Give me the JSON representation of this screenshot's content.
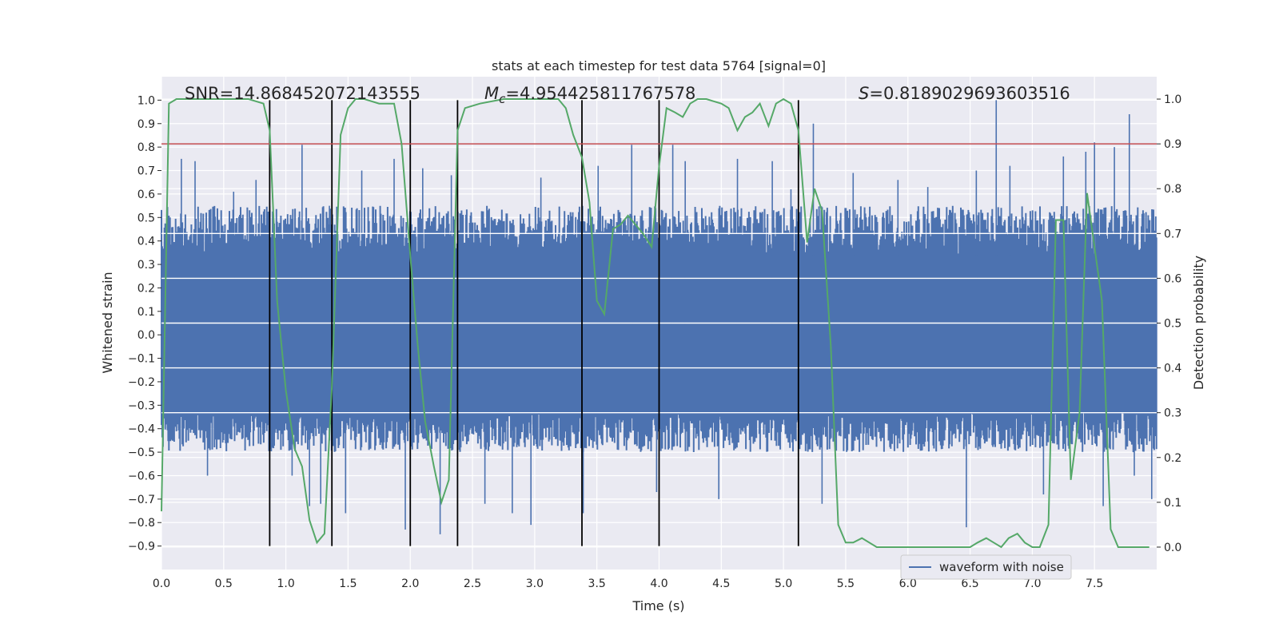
{
  "chart_data": {
    "type": "line",
    "title": "stats at each timestep for test data 5764 [signal=0]",
    "xlabel": "Time (s)",
    "ylabel": "Whitened strain",
    "y2label": "Detection probability",
    "xlim": [
      0.0,
      8.0
    ],
    "ylim": [
      -1.0,
      1.1
    ],
    "y2lim": [
      -0.05,
      1.05
    ],
    "x_ticks": [
      "0.0",
      "0.5",
      "1.0",
      "1.5",
      "2.0",
      "2.5",
      "3.0",
      "3.5",
      "4.0",
      "4.5",
      "5.0",
      "5.5",
      "6.0",
      "6.5",
      "7.0",
      "7.5"
    ],
    "y_ticks": [
      "−0.9",
      "−0.8",
      "−0.7",
      "−0.6",
      "−0.5",
      "−0.4",
      "−0.3",
      "−0.2",
      "−0.1",
      "0.0",
      "0.1",
      "0.2",
      "0.3",
      "0.4",
      "0.5",
      "0.6",
      "0.7",
      "0.8",
      "0.9",
      "1.0"
    ],
    "y2_ticks": [
      "0.0",
      "0.1",
      "0.2",
      "0.3",
      "0.4",
      "0.5",
      "0.6",
      "0.7",
      "0.8",
      "0.9",
      "1.0"
    ],
    "grid": true,
    "legend": {
      "position": "bottom-right",
      "entries": [
        "waveform with noise"
      ]
    },
    "annotations": {
      "snr": "SNR=14.868452072143555",
      "mc_symbol": "M",
      "mc_sub": "c",
      "mc_value": "=4.954425811767578",
      "s_symbol": "S",
      "s_value": "=0.8189029693603516"
    },
    "threshold": {
      "axis": "y2",
      "value": 0.9,
      "color": "#c44e52"
    },
    "vertical_lines": [
      0.87,
      1.37,
      2.0,
      2.38,
      3.38,
      4.0,
      5.12
    ],
    "vertical_line_range": [
      -0.9,
      1.0
    ],
    "series": [
      {
        "name": "waveform with noise",
        "axis": "y",
        "color": "#4c72b0",
        "kind": "noise",
        "core_band": [
          -0.33,
          0.34
        ],
        "typical_extent": [
          -0.5,
          0.55
        ],
        "spikes": [
          [
            0.07,
            0.5
          ],
          [
            0.16,
            0.75
          ],
          [
            0.27,
            0.74
          ],
          [
            0.37,
            -0.6
          ],
          [
            0.58,
            0.61
          ],
          [
            0.76,
            0.66
          ],
          [
            0.87,
            0.55
          ],
          [
            1.05,
            -0.6
          ],
          [
            1.13,
            0.81
          ],
          [
            1.19,
            -0.73
          ],
          [
            1.28,
            -0.72
          ],
          [
            1.35,
            0.55
          ],
          [
            1.48,
            -0.76
          ],
          [
            1.61,
            0.7
          ],
          [
            1.87,
            0.75
          ],
          [
            1.96,
            -0.83
          ],
          [
            2.1,
            0.71
          ],
          [
            2.24,
            -0.85
          ],
          [
            2.33,
            0.68
          ],
          [
            2.6,
            -0.72
          ],
          [
            2.82,
            -0.76
          ],
          [
            2.97,
            -0.81
          ],
          [
            3.05,
            0.67
          ],
          [
            3.39,
            -0.76
          ],
          [
            3.51,
            0.72
          ],
          [
            3.78,
            0.81
          ],
          [
            3.98,
            -0.67
          ],
          [
            4.11,
            0.81
          ],
          [
            4.21,
            0.74
          ],
          [
            4.48,
            -0.7
          ],
          [
            4.63,
            0.75
          ],
          [
            4.91,
            0.74
          ],
          [
            5.06,
            0.62
          ],
          [
            5.24,
            0.9
          ],
          [
            5.31,
            -0.72
          ],
          [
            5.56,
            0.69
          ],
          [
            5.92,
            0.66
          ],
          [
            6.16,
            0.63
          ],
          [
            6.47,
            -0.82
          ],
          [
            6.55,
            0.7
          ],
          [
            6.71,
            1.0
          ],
          [
            6.82,
            0.72
          ],
          [
            7.09,
            -0.68
          ],
          [
            7.25,
            0.76
          ],
          [
            7.43,
            0.78
          ],
          [
            7.5,
            0.82
          ],
          [
            7.57,
            -0.73
          ],
          [
            7.66,
            0.8
          ],
          [
            7.78,
            0.94
          ],
          [
            7.82,
            -0.6
          ],
          [
            7.96,
            -0.7
          ]
        ]
      },
      {
        "name": "",
        "axis": "y2",
        "color": "#55a868",
        "kind": "line",
        "x": [
          0.0,
          0.06,
          0.12,
          0.25,
          0.4,
          0.55,
          0.7,
          0.82,
          0.87,
          0.93,
          1.0,
          1.07,
          1.13,
          1.19,
          1.25,
          1.31,
          1.37,
          1.44,
          1.5,
          1.56,
          1.63,
          1.75,
          1.87,
          1.93,
          2.0,
          2.06,
          2.12,
          2.19,
          2.25,
          2.31,
          2.38,
          2.44,
          2.56,
          2.75,
          3.0,
          3.19,
          3.25,
          3.31,
          3.38,
          3.44,
          3.5,
          3.56,
          3.63,
          3.69,
          3.75,
          3.81,
          3.87,
          3.94,
          4.0,
          4.06,
          4.13,
          4.19,
          4.25,
          4.31,
          4.38,
          4.5,
          4.56,
          4.63,
          4.69,
          4.75,
          4.81,
          4.88,
          4.94,
          5.0,
          5.06,
          5.12,
          5.19,
          5.25,
          5.31,
          5.38,
          5.44,
          5.5,
          5.56,
          5.63,
          5.75,
          6.0,
          6.5,
          6.56,
          6.63,
          6.69,
          6.75,
          6.81,
          6.88,
          6.94,
          7.0,
          7.06,
          7.13,
          7.19,
          7.25,
          7.31,
          7.38,
          7.44,
          7.5,
          7.56,
          7.63,
          7.69,
          7.94
        ],
        "y": [
          0.08,
          0.99,
          1.0,
          1.0,
          1.0,
          1.0,
          1.0,
          0.99,
          0.93,
          0.55,
          0.35,
          0.22,
          0.18,
          0.06,
          0.01,
          0.03,
          0.36,
          0.92,
          0.98,
          1.0,
          1.0,
          0.99,
          0.99,
          0.9,
          0.65,
          0.45,
          0.28,
          0.18,
          0.1,
          0.15,
          0.93,
          0.98,
          0.99,
          1.0,
          1.0,
          1.0,
          0.98,
          0.92,
          0.87,
          0.77,
          0.55,
          0.52,
          0.71,
          0.72,
          0.74,
          0.72,
          0.7,
          0.67,
          0.85,
          0.98,
          0.97,
          0.96,
          0.99,
          1.0,
          1.0,
          0.99,
          0.98,
          0.93,
          0.96,
          0.97,
          0.99,
          0.94,
          0.99,
          1.0,
          0.99,
          0.93,
          0.68,
          0.8,
          0.75,
          0.45,
          0.05,
          0.01,
          0.01,
          0.02,
          0.0,
          0.0,
          0.0,
          0.01,
          0.02,
          0.01,
          0.0,
          0.02,
          0.03,
          0.01,
          0.0,
          0.0,
          0.05,
          0.73,
          0.73,
          0.15,
          0.3,
          0.79,
          0.67,
          0.55,
          0.04,
          0.0,
          0.0
        ]
      }
    ]
  }
}
